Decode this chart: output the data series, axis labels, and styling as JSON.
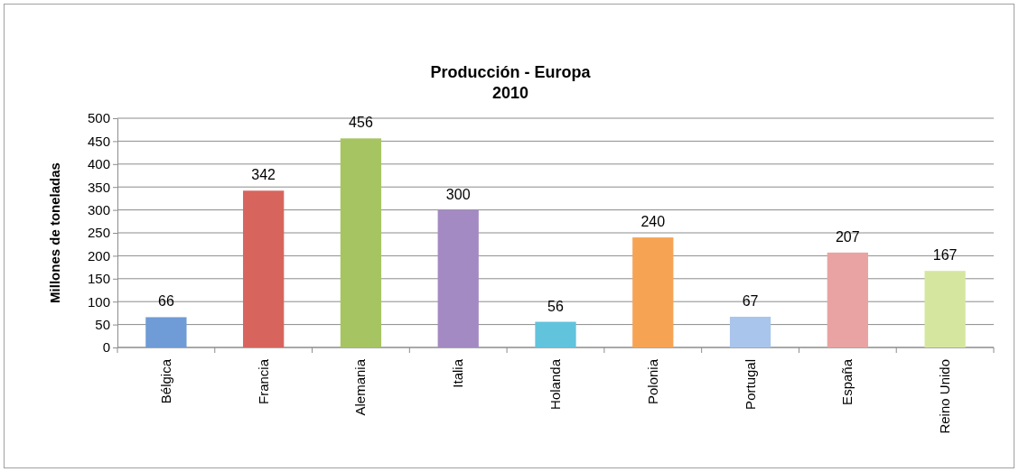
{
  "chart_data": {
    "type": "bar",
    "title": "Producción - Europa",
    "subtitle": "2010",
    "ylabel": "Millones de toneladas",
    "categories": [
      "Bélgica",
      "Francia",
      "Alemania",
      "Italia",
      "Holanda",
      "Polonia",
      "Portugal",
      "España",
      "Reino Unido"
    ],
    "values": [
      66,
      342,
      456,
      300,
      56,
      240,
      67,
      207,
      167
    ],
    "colors": [
      "#6f9bd6",
      "#d7655d",
      "#a6c562",
      "#a48ac2",
      "#62c3dd",
      "#f6a454",
      "#a9c5ec",
      "#e9a3a2",
      "#d5e79f"
    ],
    "ylim": [
      0,
      500
    ],
    "yticks": [
      0,
      50,
      100,
      150,
      200,
      250,
      300,
      350,
      400,
      450,
      500
    ],
    "grid": "y",
    "data_labels": true
  }
}
